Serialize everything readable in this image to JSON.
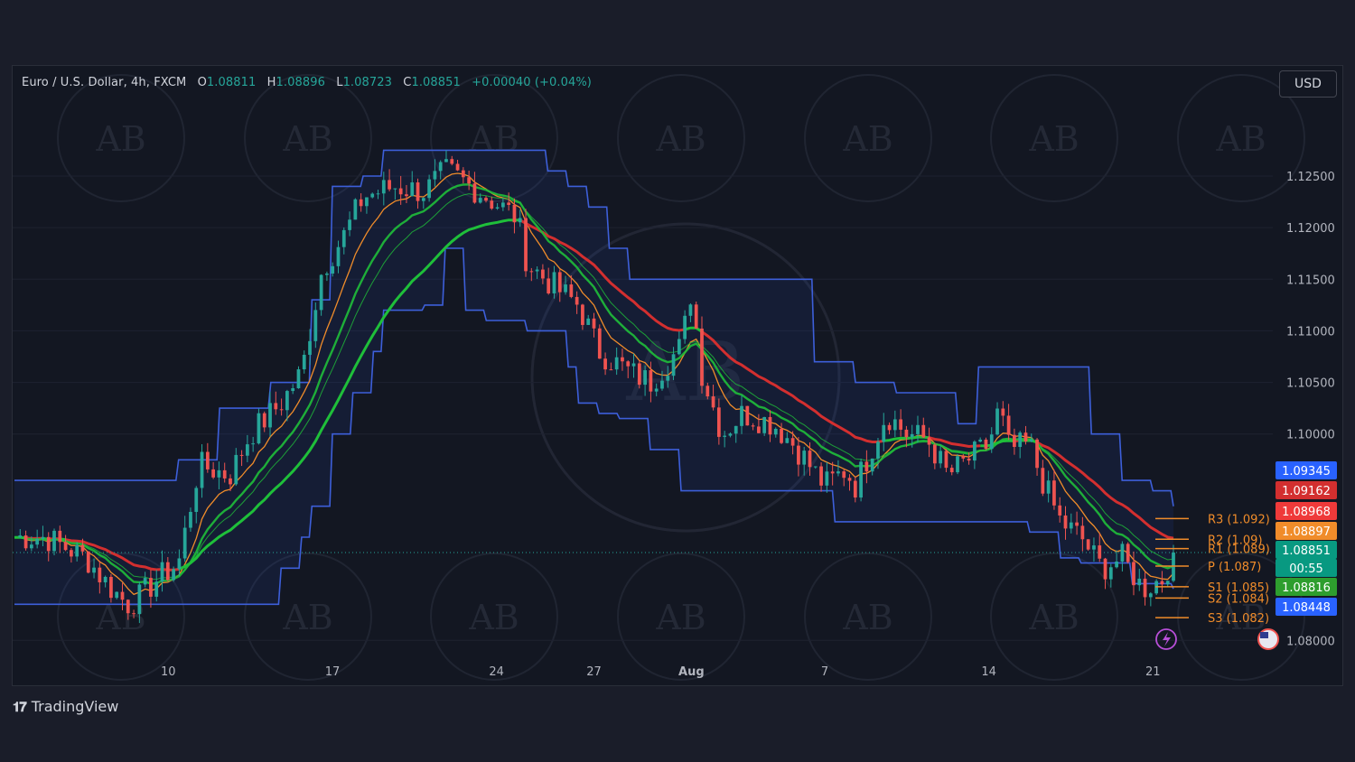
{
  "header": {
    "symbol": "Euro / U.S. Dollar, 4h, FXCM",
    "open_label": "O",
    "open": "1.08811",
    "high_label": "H",
    "high": "1.08896",
    "low_label": "L",
    "low": "1.08723",
    "close_label": "C",
    "close": "1.08851",
    "change": "+0.00040 (+0.04%)"
  },
  "currency_button": "USD",
  "brand": "TradingView",
  "colors": {
    "background": "#131722",
    "up": "#26a69a",
    "down": "#ef5350",
    "channel": "#2962ff",
    "ema_green": "#1fbf3a",
    "ma_red": "#d32f2f",
    "ma_orange": "#f08c2a",
    "watermark": "#3a3f4f"
  },
  "watermark_text": "AB",
  "chart_data": {
    "type": "candlestick",
    "symbol": "Euro / U.S. Dollar",
    "timeframe": "4h",
    "y_axis": {
      "ticks": [
        "1.12500",
        "1.12000",
        "1.11500",
        "1.11000",
        "1.10500",
        "1.10000",
        "1.08000"
      ],
      "range": [
        1.0788,
        1.1348
      ]
    },
    "x_axis": {
      "ticks": [
        "10",
        "17",
        "24",
        "27",
        "Aug",
        "7",
        "14",
        "21"
      ]
    },
    "candle_count": 205,
    "close_path": [
      [
        0,
        1.09
      ],
      [
        6,
        1.09
      ],
      [
        14,
        1.088
      ],
      [
        18,
        1.0855
      ],
      [
        22,
        1.0835
      ],
      [
        24,
        1.084
      ],
      [
        28,
        1.086
      ],
      [
        32,
        1.0875
      ],
      [
        36,
        1.097
      ],
      [
        42,
        1.096
      ],
      [
        46,
        1.1
      ],
      [
        52,
        1.103
      ],
      [
        56,
        1.106
      ],
      [
        60,
        1.116
      ],
      [
        64,
        1.119
      ],
      [
        68,
        1.123
      ],
      [
        74,
        1.124
      ],
      [
        80,
        1.1235
      ],
      [
        84,
        1.1255
      ],
      [
        86,
        1.125
      ],
      [
        92,
        1.123
      ],
      [
        98,
        1.121
      ],
      [
        100,
        1.1165
      ],
      [
        106,
        1.114
      ],
      [
        110,
        1.1125
      ],
      [
        114,
        1.108
      ],
      [
        120,
        1.106
      ],
      [
        124,
        1.105
      ],
      [
        130,
        1.1085
      ],
      [
        132,
        1.114
      ],
      [
        134,
        1.106
      ],
      [
        138,
        1.1
      ],
      [
        142,
        1.102
      ],
      [
        148,
        1.101
      ],
      [
        152,
        1.099
      ],
      [
        158,
        1.095
      ],
      [
        162,
        1.0965
      ],
      [
        164,
        1.095
      ],
      [
        170,
        1.102
      ],
      [
        174,
        1.1
      ],
      [
        178,
        1.0995
      ],
      [
        182,
        1.096
      ],
      [
        186,
        1.0975
      ],
      [
        190,
        1.099
      ],
      [
        192,
        1.1025
      ],
      [
        194,
        1.0985
      ],
      [
        198,
        1.099
      ],
      [
        200,
        1.096
      ],
      [
        204,
        1.0915
      ],
      [
        208,
        1.09
      ],
      [
        212,
        1.087
      ],
      [
        216,
        1.088
      ],
      [
        220,
        1.085
      ],
      [
        224,
        1.086
      ],
      [
        226,
        1.0885
      ]
    ],
    "channel_upper": [
      [
        0,
        1.0955
      ],
      [
        28,
        1.0955
      ],
      [
        32,
        1.0975
      ],
      [
        36,
        1.0975
      ],
      [
        40,
        1.1025
      ],
      [
        46,
        1.1025
      ],
      [
        50,
        1.105
      ],
      [
        54,
        1.105
      ],
      [
        58,
        1.113
      ],
      [
        62,
        1.124
      ],
      [
        68,
        1.125
      ],
      [
        72,
        1.1275
      ],
      [
        100,
        1.1275
      ],
      [
        104,
        1.1255
      ],
      [
        108,
        1.124
      ],
      [
        112,
        1.122
      ],
      [
        116,
        1.118
      ],
      [
        120,
        1.115
      ],
      [
        126,
        1.115
      ],
      [
        130,
        1.115
      ],
      [
        152,
        1.115
      ],
      [
        156,
        1.107
      ],
      [
        164,
        1.105
      ],
      [
        172,
        1.104
      ],
      [
        180,
        1.104
      ],
      [
        184,
        1.101
      ],
      [
        188,
        1.1065
      ],
      [
        206,
        1.1065
      ],
      [
        210,
        1.1
      ],
      [
        216,
        1.0955
      ],
      [
        222,
        1.0945
      ],
      [
        226,
        1.093
      ]
    ],
    "channel_lower": [
      [
        0,
        1.0835
      ],
      [
        48,
        1.0835
      ],
      [
        52,
        1.087
      ],
      [
        56,
        1.09
      ],
      [
        58,
        1.093
      ],
      [
        62,
        1.1
      ],
      [
        66,
        1.104
      ],
      [
        70,
        1.108
      ],
      [
        72,
        1.112
      ],
      [
        80,
        1.1125
      ],
      [
        84,
        1.118
      ],
      [
        88,
        1.112
      ],
      [
        92,
        1.111
      ],
      [
        96,
        1.111
      ],
      [
        100,
        1.11
      ],
      [
        108,
        1.1065
      ],
      [
        110,
        1.103
      ],
      [
        114,
        1.102
      ],
      [
        118,
        1.1015
      ],
      [
        120,
        1.1015
      ],
      [
        124,
        1.0985
      ],
      [
        130,
        1.0945
      ],
      [
        134,
        1.0945
      ],
      [
        144,
        1.0945
      ],
      [
        160,
        1.0915
      ],
      [
        190,
        1.0915
      ],
      [
        198,
        1.0905
      ],
      [
        204,
        1.088
      ],
      [
        208,
        1.0875
      ],
      [
        218,
        1.0855
      ],
      [
        226,
        1.085
      ]
    ],
    "pivots": [
      {
        "label": "R3 (1.092)",
        "value": 1.0918
      },
      {
        "label": "R2 (1.09)",
        "value": 1.0898
      },
      {
        "label": "R1 (1.089)",
        "value": 1.0889
      },
      {
        "label": "P (1.087)",
        "value": 1.0872
      },
      {
        "label": "S1 (1.085)",
        "value": 1.0852
      },
      {
        "label": "S2 (1.084)",
        "value": 1.0841
      },
      {
        "label": "S3 (1.082)",
        "value": 1.0822
      }
    ],
    "price_tags": [
      {
        "text": "1.09345",
        "color": "#2962ff"
      },
      {
        "text": "1.09162",
        "color": "#d32f2f"
      },
      {
        "text": "1.08968",
        "color": "#ef3a3a"
      },
      {
        "text": "1.08897",
        "color": "#f08c2a"
      },
      {
        "text": "1.08851",
        "color": "#089981"
      },
      {
        "text": "00:55",
        "color": "#089981"
      },
      {
        "text": "1.08816",
        "color": "#2e9e2e"
      },
      {
        "text": "1.08448",
        "color": "#2962ff"
      }
    ],
    "last_price": 1.08851
  }
}
